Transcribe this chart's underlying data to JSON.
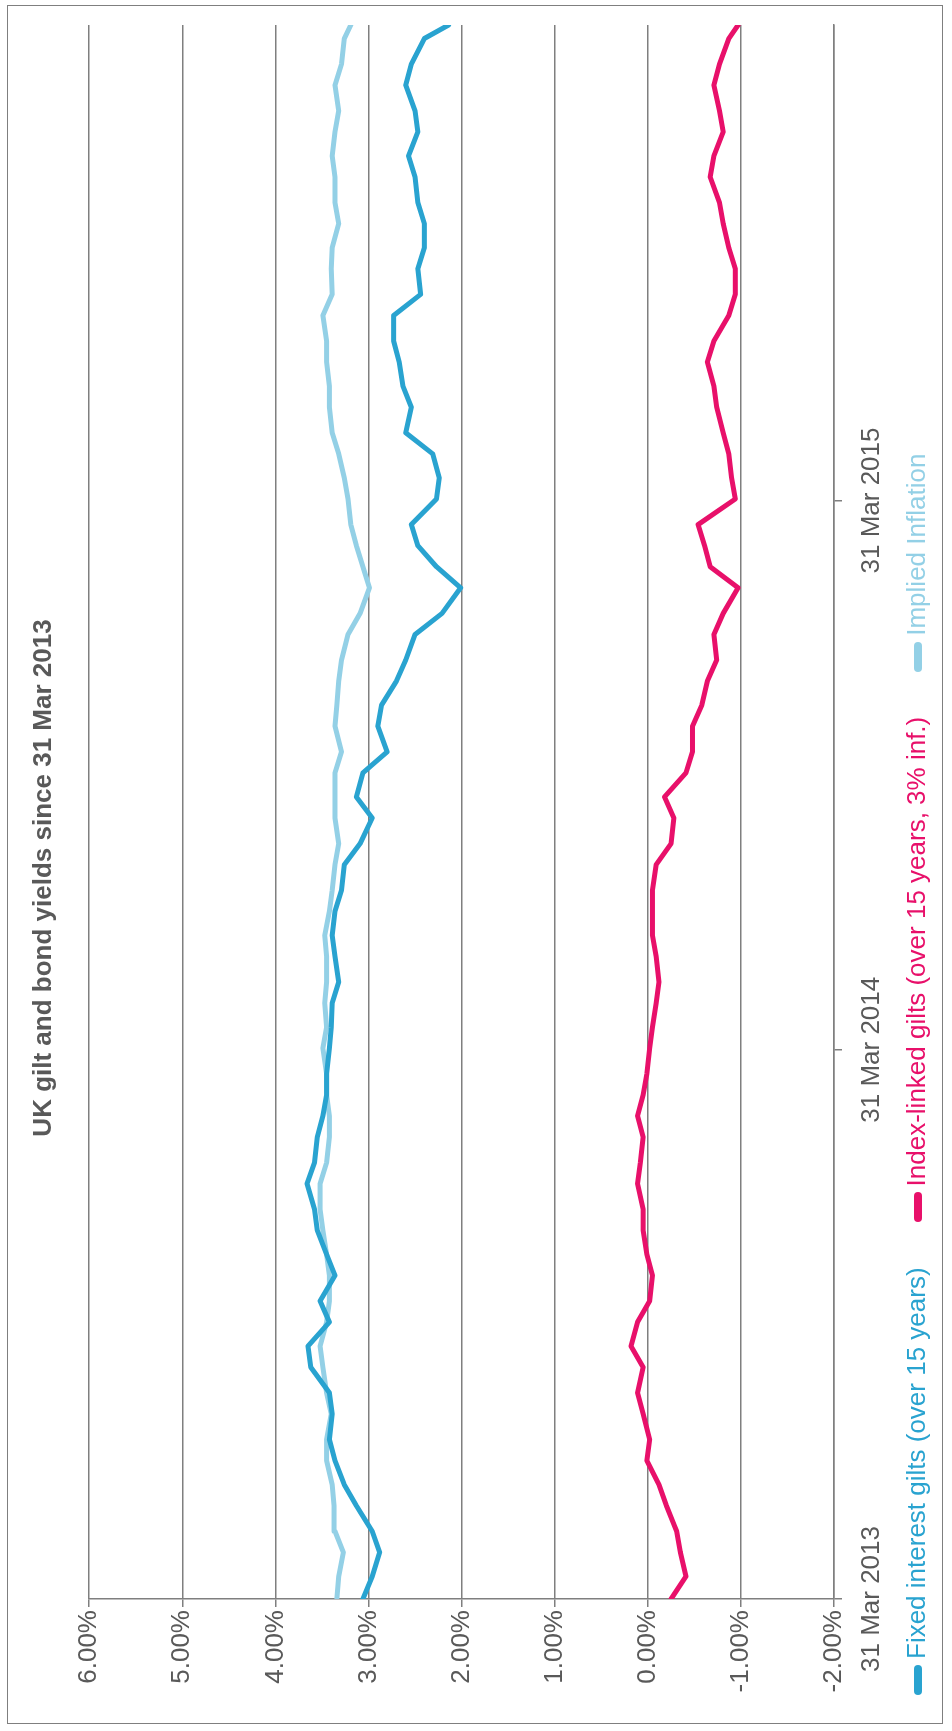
{
  "chart_data": {
    "type": "line",
    "title": "UK gilt and bond yields since 31 Mar 2013",
    "x": [
      "2013-03-31",
      "2013-04-15",
      "2013-05-01",
      "2013-05-15",
      "2013-06-01",
      "2013-06-15",
      "2013-07-01",
      "2013-07-15",
      "2013-08-01",
      "2013-08-15",
      "2013-09-01",
      "2013-09-15",
      "2013-10-01",
      "2013-10-15",
      "2013-11-01",
      "2013-11-15",
      "2013-12-01",
      "2013-12-15",
      "2014-01-01",
      "2014-01-15",
      "2014-02-01",
      "2014-02-15",
      "2014-03-01",
      "2014-03-15",
      "2014-04-01",
      "2014-04-15",
      "2014-05-01",
      "2014-05-15",
      "2014-06-01",
      "2014-06-15",
      "2014-07-01",
      "2014-07-15",
      "2014-08-01",
      "2014-08-15",
      "2014-09-01",
      "2014-09-15",
      "2014-10-01",
      "2014-10-15",
      "2014-11-01",
      "2014-11-15",
      "2014-12-01",
      "2014-12-15",
      "2015-01-01",
      "2015-01-15",
      "2015-02-01",
      "2015-02-15",
      "2015-03-01",
      "2015-03-15",
      "2015-04-01",
      "2015-04-15",
      "2015-05-01",
      "2015-05-15",
      "2015-06-01",
      "2015-06-15",
      "2015-07-01",
      "2015-07-15",
      "2015-08-01",
      "2015-08-15",
      "2015-09-01",
      "2015-09-15",
      "2015-10-01",
      "2015-10-15",
      "2015-11-01",
      "2015-11-15",
      "2015-12-01",
      "2015-12-15",
      "2016-01-01",
      "2016-01-15",
      "2016-02-01",
      "2016-02-10"
    ],
    "series": [
      {
        "name": "Fixed interest gilts (over 15 years)",
        "color": "#29a3d0",
        "values": [
          3.06,
          2.96,
          2.88,
          2.96,
          3.13,
          3.26,
          3.36,
          3.42,
          3.39,
          3.42,
          3.62,
          3.65,
          3.42,
          3.52,
          3.36,
          3.45,
          3.55,
          3.58,
          3.66,
          3.58,
          3.55,
          3.49,
          3.45,
          3.45,
          3.42,
          3.4,
          3.39,
          3.32,
          3.36,
          3.39,
          3.36,
          3.29,
          3.26,
          3.09,
          2.96,
          3.13,
          3.06,
          2.8,
          2.9,
          2.86,
          2.7,
          2.6,
          2.5,
          2.21,
          2.01,
          2.27,
          2.47,
          2.54,
          2.27,
          2.24,
          2.31,
          2.6,
          2.54,
          2.63,
          2.67,
          2.73,
          2.73,
          2.44,
          2.47,
          2.4,
          2.4,
          2.47,
          2.5,
          2.57,
          2.47,
          2.5,
          2.6,
          2.54,
          2.4,
          2.14
        ]
      },
      {
        "name": "Index-linked gilts (over 15 years, 3% inf.)",
        "color": "#e8106a",
        "values": [
          -0.25,
          -0.41,
          -0.35,
          -0.31,
          -0.2,
          -0.12,
          0.01,
          -0.02,
          0.05,
          0.11,
          0.05,
          0.18,
          0.11,
          -0.02,
          -0.05,
          0.01,
          0.05,
          0.05,
          0.11,
          0.08,
          0.05,
          0.11,
          0.05,
          0.01,
          -0.02,
          -0.05,
          -0.09,
          -0.12,
          -0.09,
          -0.05,
          -0.05,
          -0.05,
          -0.09,
          -0.25,
          -0.28,
          -0.18,
          -0.41,
          -0.48,
          -0.48,
          -0.58,
          -0.64,
          -0.74,
          -0.71,
          -0.81,
          -0.97,
          -0.67,
          -0.61,
          -0.54,
          -0.94,
          -0.9,
          -0.87,
          -0.81,
          -0.74,
          -0.71,
          -0.64,
          -0.71,
          -0.87,
          -0.94,
          -0.94,
          -0.87,
          -0.81,
          -0.77,
          -0.67,
          -0.71,
          -0.81,
          -0.77,
          -0.71,
          -0.77,
          -0.87,
          -0.97
        ]
      },
      {
        "name": "Implied Inflation",
        "color": "#93d0e6",
        "values": [
          3.34,
          3.32,
          3.27,
          3.36,
          3.37,
          3.39,
          3.45,
          3.45,
          3.4,
          3.45,
          3.49,
          3.52,
          3.45,
          3.42,
          3.42,
          3.45,
          3.49,
          3.52,
          3.52,
          3.45,
          3.42,
          3.42,
          3.45,
          3.45,
          3.49,
          3.45,
          3.47,
          3.45,
          3.45,
          3.47,
          3.42,
          3.39,
          3.36,
          3.32,
          3.36,
          3.36,
          3.36,
          3.29,
          3.36,
          3.34,
          3.32,
          3.29,
          3.22,
          3.09,
          2.99,
          3.06,
          3.13,
          3.19,
          3.22,
          3.26,
          3.32,
          3.39,
          3.42,
          3.42,
          3.45,
          3.45,
          3.49,
          3.39,
          3.4,
          3.39,
          3.32,
          3.36,
          3.36,
          3.39,
          3.36,
          3.32,
          3.36,
          3.29,
          3.26,
          3.19
        ]
      }
    ],
    "orientation": "horizontal",
    "ylim": [
      "2013-03-31",
      "2016-02-10"
    ],
    "yticks": [
      {
        "value": "2013-03-31",
        "label": "31 Mar 2013"
      },
      {
        "value": "2014-03-31",
        "label": "31 Mar 2014"
      },
      {
        "value": "2015-03-31",
        "label": "31 Mar 2015"
      }
    ],
    "xlim": [
      6,
      -2
    ],
    "xticks": [
      {
        "value": 6,
        "label": "6.00%"
      },
      {
        "value": 5,
        "label": "5.00%"
      },
      {
        "value": 4,
        "label": "4.00%"
      },
      {
        "value": 3,
        "label": "3.00%"
      },
      {
        "value": 2,
        "label": "2.00%"
      },
      {
        "value": 1,
        "label": "1.00%"
      },
      {
        "value": 0,
        "label": "0.00%"
      },
      {
        "value": -1,
        "label": "-1.00%"
      },
      {
        "value": -2,
        "label": "-2.00%"
      }
    ],
    "grid": "x",
    "legend": "right",
    "marker": "none",
    "line_style": "solid"
  }
}
